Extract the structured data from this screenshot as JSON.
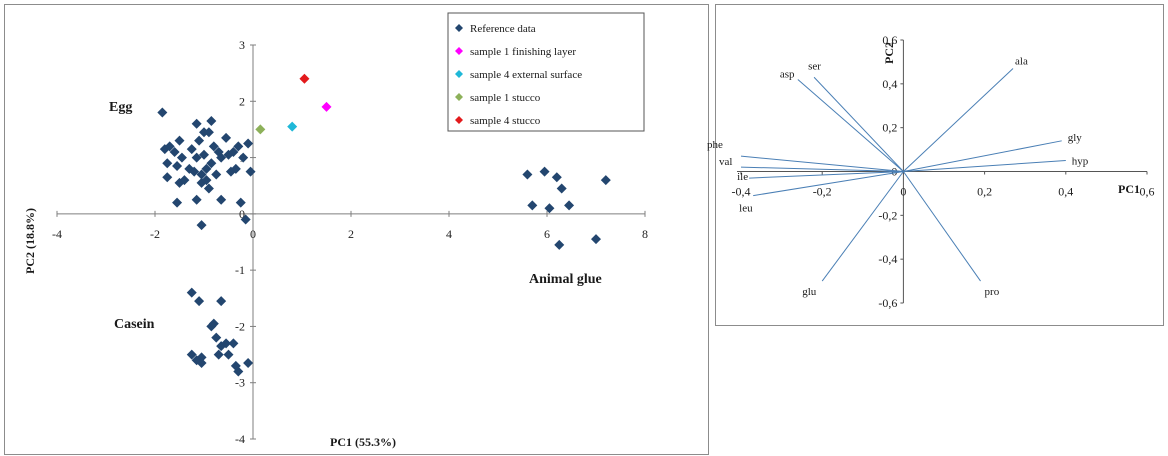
{
  "chart_data": [
    {
      "type": "scatter",
      "title": "",
      "xlabel": "PC1 (55.3%)",
      "ylabel": "PC2 (18.8%)",
      "xlim": [
        -4,
        8
      ],
      "ylim": [
        -4,
        3
      ],
      "xticks": [
        "-4",
        "-2",
        "0",
        "2",
        "4",
        "6",
        "8"
      ],
      "yticks": [
        "3",
        "2",
        "1",
        "0",
        "-1",
        "-2",
        "-3",
        "-4"
      ],
      "grid": false,
      "legend_position": "top-right",
      "group_labels": [
        {
          "text": "Egg",
          "x": -2.4,
          "y": 1.8
        },
        {
          "text": "Casein",
          "x": -2.3,
          "y": -2.0
        },
        {
          "text": "Animal glue",
          "x": 6.3,
          "y": -1.2
        }
      ],
      "series": [
        {
          "name": "Reference data",
          "color": "#23466f",
          "points": [
            [
              -1.85,
              1.8
            ],
            [
              -1.8,
              1.15
            ],
            [
              -1.75,
              0.9
            ],
            [
              -1.75,
              0.65
            ],
            [
              -1.7,
              1.2
            ],
            [
              -1.6,
              1.1
            ],
            [
              -1.55,
              0.85
            ],
            [
              -1.5,
              1.3
            ],
            [
              -1.5,
              0.55
            ],
            [
              -1.55,
              0.2
            ],
            [
              -1.45,
              1.0
            ],
            [
              -1.4,
              0.6
            ],
            [
              -1.3,
              0.8
            ],
            [
              -1.25,
              1.15
            ],
            [
              -1.2,
              0.75
            ],
            [
              -1.15,
              1.6
            ],
            [
              -1.15,
              1.0
            ],
            [
              -1.1,
              1.3
            ],
            [
              -1.05,
              0.7
            ],
            [
              -1.05,
              0.55
            ],
            [
              -1.0,
              1.45
            ],
            [
              -1.0,
              1.05
            ],
            [
              -0.95,
              0.8
            ],
            [
              -0.95,
              0.6
            ],
            [
              -0.9,
              1.45
            ],
            [
              -0.9,
              0.45
            ],
            [
              -0.85,
              1.65
            ],
            [
              -0.85,
              0.9
            ],
            [
              -0.8,
              1.2
            ],
            [
              -0.75,
              0.7
            ],
            [
              -0.7,
              1.1
            ],
            [
              -0.65,
              0.25
            ],
            [
              -0.65,
              1.0
            ],
            [
              -0.55,
              1.35
            ],
            [
              -0.5,
              1.05
            ],
            [
              -0.45,
              0.75
            ],
            [
              -0.4,
              1.1
            ],
            [
              -0.35,
              0.8
            ],
            [
              -0.3,
              1.2
            ],
            [
              -0.2,
              1.0
            ],
            [
              -0.1,
              1.25
            ],
            [
              -0.05,
              0.75
            ],
            [
              -1.15,
              0.25
            ],
            [
              -1.05,
              -0.2
            ],
            [
              -0.25,
              0.2
            ],
            [
              -0.15,
              -0.1
            ],
            [
              -1.25,
              -1.4
            ],
            [
              -1.1,
              -1.55
            ],
            [
              -0.65,
              -1.55
            ],
            [
              -0.85,
              -2.0
            ],
            [
              -0.75,
              -2.2
            ],
            [
              -0.8,
              -1.95
            ],
            [
              -0.65,
              -2.35
            ],
            [
              -0.55,
              -2.3
            ],
            [
              -0.4,
              -2.3
            ],
            [
              -0.5,
              -2.5
            ],
            [
              -0.7,
              -2.5
            ],
            [
              -0.3,
              -2.8
            ],
            [
              -0.35,
              -2.7
            ],
            [
              -1.05,
              -2.55
            ],
            [
              -1.15,
              -2.6
            ],
            [
              -1.05,
              -2.65
            ],
            [
              -1.25,
              -2.5
            ],
            [
              -0.1,
              -2.65
            ],
            [
              5.6,
              0.7
            ],
            [
              5.7,
              0.15
            ],
            [
              5.95,
              0.75
            ],
            [
              6.05,
              0.1
            ],
            [
              6.2,
              0.65
            ],
            [
              6.3,
              0.45
            ],
            [
              6.45,
              0.15
            ],
            [
              7.2,
              0.6
            ],
            [
              6.25,
              -0.55
            ],
            [
              7.0,
              -0.45
            ]
          ]
        },
        {
          "name": "sample 1 finishing layer",
          "color": "#ff00ff",
          "points": [
            [
              1.5,
              1.9
            ]
          ]
        },
        {
          "name": "sample 4 external surface",
          "color": "#1fb8d8",
          "points": [
            [
              0.8,
              1.55
            ]
          ]
        },
        {
          "name": "sample 1 stucco",
          "color": "#8db15a",
          "points": [
            [
              0.15,
              1.5
            ]
          ]
        },
        {
          "name": "sample 4 stucco",
          "color": "#e31a1c",
          "points": [
            [
              1.05,
              2.4
            ]
          ]
        }
      ]
    },
    {
      "type": "loading_plot",
      "title": "",
      "xlabel": "PC1",
      "ylabel": "PC2",
      "xlim": [
        -0.4,
        0.6
      ],
      "ylim": [
        -0.6,
        0.6
      ],
      "xticks": [
        "-0,4",
        "-0,2",
        "0",
        "0,2",
        "0,4",
        "0,6"
      ],
      "yticks": [
        "0,6",
        "0,4",
        "0,2",
        "0",
        "-0,2",
        "-0,4",
        "-0,6"
      ],
      "line_color": "#4a7fb5",
      "vectors": [
        {
          "name": "ala",
          "x": 0.27,
          "y": 0.47
        },
        {
          "name": "gly",
          "x": 0.39,
          "y": 0.14
        },
        {
          "name": "hyp",
          "x": 0.4,
          "y": 0.05
        },
        {
          "name": "ser",
          "x": -0.22,
          "y": 0.43
        },
        {
          "name": "asp",
          "x": -0.26,
          "y": 0.42
        },
        {
          "name": "phe",
          "x": -0.4,
          "y": 0.07
        },
        {
          "name": "val",
          "x": -0.4,
          "y": 0.02
        },
        {
          "name": "ile",
          "x": -0.38,
          "y": -0.03
        },
        {
          "name": "leu",
          "x": -0.37,
          "y": -0.11
        },
        {
          "name": "glu",
          "x": -0.2,
          "y": -0.5
        },
        {
          "name": "pro",
          "x": 0.19,
          "y": -0.5
        }
      ]
    }
  ]
}
